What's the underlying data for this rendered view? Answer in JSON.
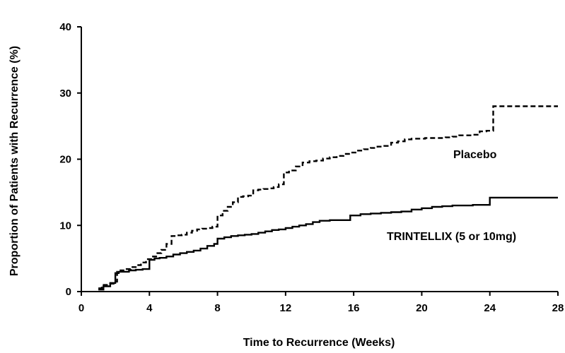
{
  "chart_data": {
    "type": "line",
    "xlabel": "Time to Recurrence (Weeks)",
    "ylabel": "Proportion of Patients  with Recurrence  (%)",
    "xlim": [
      0,
      28
    ],
    "ylim": [
      0,
      40
    ],
    "xticks": [
      0,
      4,
      8,
      12,
      16,
      20,
      24,
      28
    ],
    "yticks": [
      0,
      10,
      20,
      30,
      40
    ],
    "grid": false,
    "legend": "none",
    "series": [
      {
        "name": "Placebo",
        "line_style": "dashed",
        "color": "#000000",
        "x": [
          1,
          1.2,
          1.6,
          1.9,
          2.1,
          2.3,
          2.6,
          2.9,
          3.2,
          3.5,
          3.8,
          4.1,
          4.4,
          4.7,
          5.0,
          5.3,
          5.6,
          5.9,
          6.2,
          6.5,
          6.8,
          7.1,
          7.4,
          7.7,
          8.0,
          8.3,
          8.6,
          8.9,
          9.2,
          9.5,
          9.8,
          10.1,
          10.4,
          10.7,
          11.0,
          11.3,
          11.6,
          11.9,
          12.2,
          12.6,
          13.0,
          13.4,
          13.8,
          14.2,
          14.6,
          15.0,
          15.4,
          15.8,
          16.2,
          16.6,
          17.0,
          17.4,
          17.8,
          18.2,
          18.6,
          19.0,
          19.4,
          19.8,
          20.2,
          20.6,
          21.0,
          21.4,
          21.8,
          22.2,
          22.6,
          23.0,
          23.4,
          23.8,
          24.2,
          28
        ],
        "y": [
          0.5,
          1.0,
          1.2,
          1.5,
          3.0,
          3.2,
          3.4,
          3.7,
          4.0,
          4.4,
          4.9,
          5.3,
          5.8,
          6.3,
          7.2,
          8.4,
          8.5,
          8.6,
          8.9,
          9.2,
          9.4,
          9.5,
          9.6,
          9.8,
          11.5,
          12.2,
          12.8,
          13.5,
          14.3,
          14.4,
          14.5,
          15.3,
          15.4,
          15.5,
          15.6,
          15.8,
          16.2,
          18.0,
          18.3,
          18.9,
          19.5,
          19.7,
          19.8,
          20.1,
          20.3,
          20.5,
          20.8,
          21.0,
          21.3,
          21.5,
          21.7,
          21.9,
          22.0,
          22.5,
          22.7,
          23.0,
          23.1,
          23.1,
          23.2,
          23.2,
          23.2,
          23.3,
          23.4,
          23.6,
          23.6,
          23.7,
          24.2,
          24.3,
          28.0,
          28.0
        ]
      },
      {
        "name": "TRINTELLIX (5 or 10mg)",
        "line_style": "solid",
        "color": "#000000",
        "x": [
          1,
          1.3,
          1.7,
          2.0,
          2.2,
          2.5,
          2.8,
          3.2,
          3.6,
          4.0,
          4.3,
          4.6,
          5.0,
          5.4,
          5.8,
          6.2,
          6.6,
          7.0,
          7.4,
          7.8,
          8.0,
          8.4,
          8.8,
          9.2,
          9.6,
          10.0,
          10.4,
          10.8,
          11.2,
          11.6,
          12.0,
          12.4,
          12.8,
          13.2,
          13.6,
          14.0,
          14.6,
          15.2,
          15.8,
          16.4,
          17.0,
          17.6,
          18.2,
          18.8,
          19.4,
          20.0,
          20.6,
          21.2,
          21.8,
          22.4,
          23.0,
          23.6,
          24.0,
          28
        ],
        "y": [
          0.3,
          0.8,
          1.3,
          2.8,
          3.0,
          3.0,
          3.2,
          3.3,
          3.4,
          4.8,
          5.0,
          5.1,
          5.3,
          5.6,
          5.8,
          6.0,
          6.2,
          6.5,
          6.9,
          7.2,
          8.0,
          8.2,
          8.4,
          8.5,
          8.6,
          8.7,
          8.9,
          9.1,
          9.3,
          9.4,
          9.6,
          9.8,
          10.0,
          10.2,
          10.5,
          10.7,
          10.8,
          10.8,
          11.5,
          11.7,
          11.8,
          11.9,
          12.0,
          12.1,
          12.4,
          12.6,
          12.8,
          12.9,
          13.0,
          13.0,
          13.1,
          13.1,
          14.2,
          14.2
        ]
      }
    ],
    "annotations": [
      {
        "text": "Placebo",
        "series": 0
      },
      {
        "text": "TRINTELLIX (5 or 10mg)",
        "series": 1
      }
    ]
  }
}
